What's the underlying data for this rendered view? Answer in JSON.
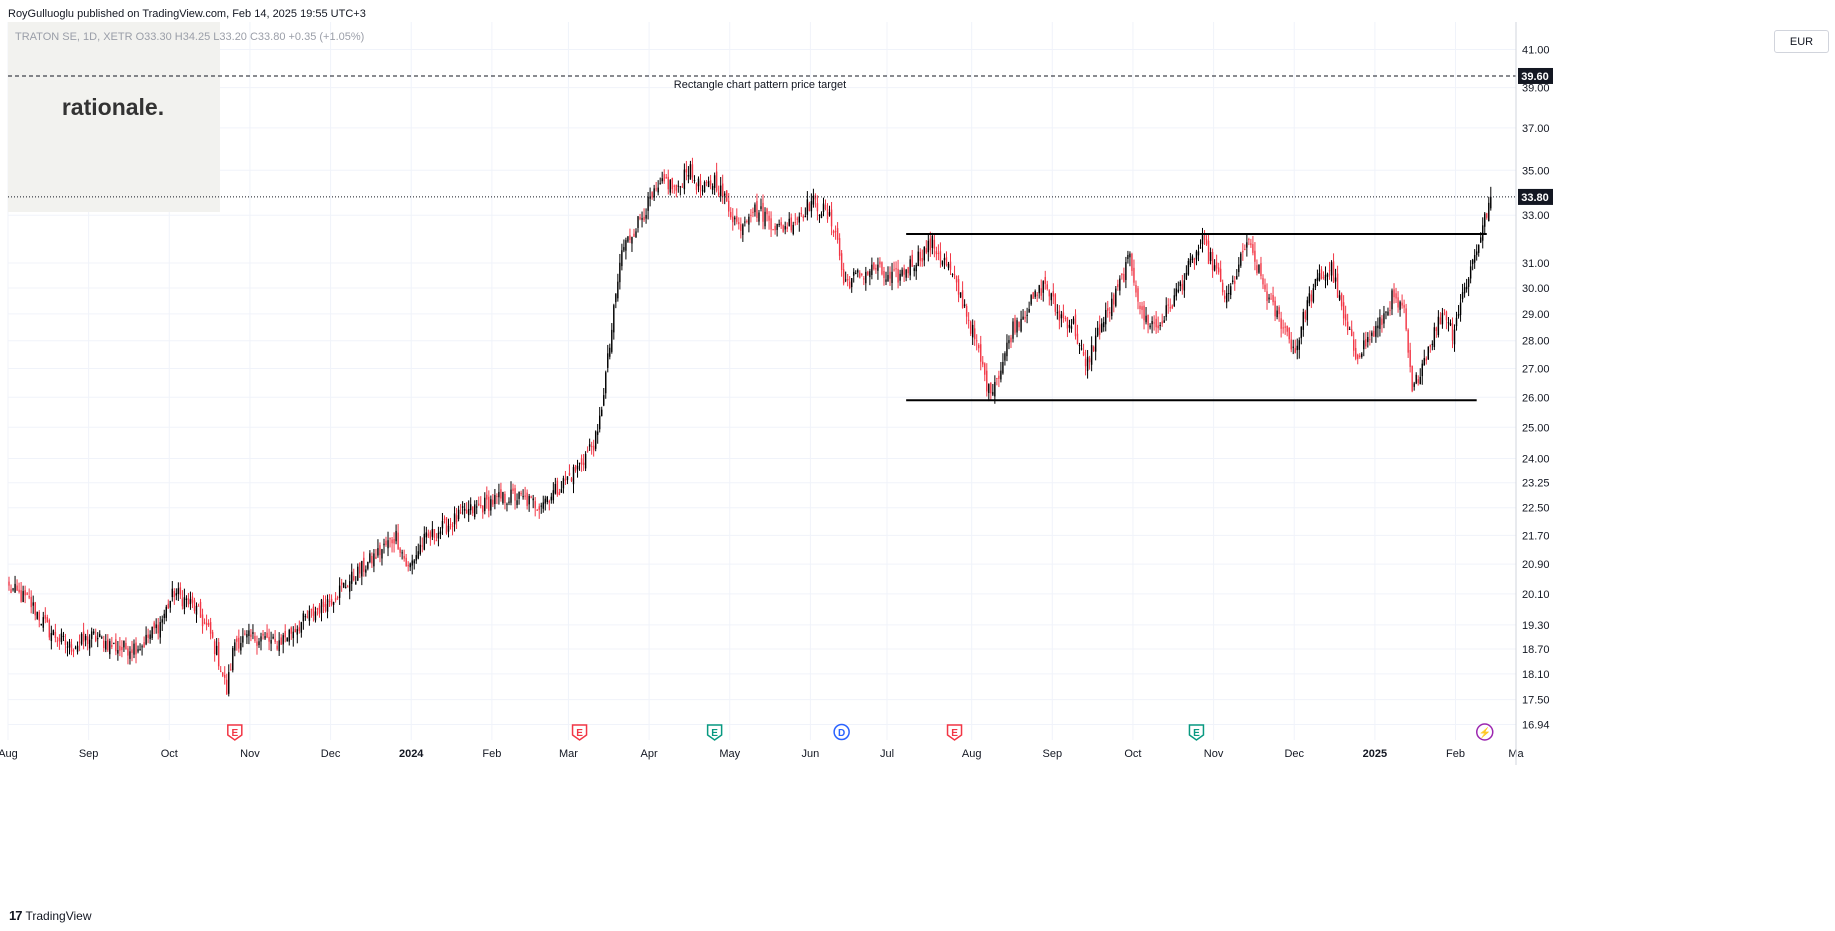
{
  "header": {
    "published": "RoyGulluoglu published on TradingView.com, Feb 14, 2025 19:55 UTC+3",
    "legend": "TRATON SE, 1D, XETR  O33.30  H34.25  L33.20  C33.80  +0.35 (+1.05%)"
  },
  "watermark": {
    "brand": "rationale."
  },
  "footer": {
    "brand": "TradingView",
    "logo_text": "17"
  },
  "colors": {
    "up": "#000000",
    "down": "#f23645",
    "grid": "#f0f3fa",
    "text": "#131722"
  },
  "chart_data": {
    "type": "candlestick",
    "symbol": "TRATON SE",
    "interval": "1D",
    "exchange": "XETR",
    "currency": "EUR",
    "y_scale": "log",
    "ylim": [
      16.6,
      42.5
    ],
    "y_ticks": [
      "41.00",
      "39.00",
      "37.00",
      "35.00",
      "33.00",
      "31.00",
      "30.00",
      "29.00",
      "28.00",
      "27.00",
      "26.00",
      "25.00",
      "24.00",
      "23.25",
      "22.50",
      "21.70",
      "20.90",
      "20.10",
      "19.30",
      "18.70",
      "18.10",
      "17.50",
      "16.94"
    ],
    "x_ticks": [
      "Aug",
      "Sep",
      "Oct",
      "Nov",
      "Dec",
      "2024",
      "Feb",
      "Mar",
      "Apr",
      "May",
      "Jun",
      "Jul",
      "Aug",
      "Sep",
      "Oct",
      "Nov",
      "Dec",
      "2025",
      "Feb",
      "Ma"
    ],
    "last_price": "33.80",
    "target_price": "39.60",
    "annotations": [
      {
        "text": "Rectangle chart pattern price target",
        "price": 39.6
      }
    ],
    "rectangle_pattern": {
      "upper": 32.2,
      "lower": 25.9
    },
    "events": [
      "E",
      "E",
      "E",
      "D",
      "E",
      "E",
      "⚡"
    ],
    "price_path": [
      [
        0,
        20.25
      ],
      [
        10,
        19.9
      ],
      [
        20,
        19.15
      ],
      [
        30,
        18.75
      ],
      [
        42,
        19.0
      ],
      [
        55,
        18.7
      ],
      [
        66,
        18.8
      ],
      [
        75,
        19.35
      ],
      [
        82,
        20.15
      ],
      [
        92,
        19.75
      ],
      [
        100,
        19.05
      ],
      [
        104,
        18.45
      ],
      [
        108,
        17.7
      ],
      [
        112,
        18.9
      ],
      [
        125,
        19.0
      ],
      [
        132,
        18.8
      ],
      [
        145,
        19.35
      ],
      [
        160,
        20.0
      ],
      [
        172,
        20.6
      ],
      [
        185,
        21.3
      ],
      [
        192,
        21.7
      ],
      [
        198,
        20.75
      ],
      [
        205,
        21.5
      ],
      [
        215,
        21.9
      ],
      [
        225,
        22.3
      ],
      [
        240,
        22.7
      ],
      [
        250,
        22.85
      ],
      [
        262,
        22.6
      ],
      [
        272,
        23.05
      ],
      [
        282,
        23.7
      ],
      [
        292,
        24.7
      ],
      [
        298,
        27.8
      ],
      [
        304,
        31.5
      ],
      [
        310,
        32.4
      ],
      [
        318,
        33.6
      ],
      [
        326,
        34.5
      ],
      [
        332,
        34.0
      ],
      [
        336,
        35.2
      ],
      [
        344,
        34.0
      ],
      [
        350,
        34.6
      ],
      [
        356,
        33.5
      ],
      [
        362,
        32.5
      ],
      [
        368,
        33.3
      ],
      [
        375,
        33.0
      ],
      [
        382,
        32.4
      ],
      [
        390,
        32.8
      ],
      [
        398,
        33.6
      ],
      [
        404,
        33.2
      ],
      [
        410,
        32.4
      ],
      [
        414,
        30.2
      ],
      [
        422,
        30.5
      ],
      [
        430,
        30.8
      ],
      [
        436,
        30.3
      ],
      [
        442,
        30.5
      ],
      [
        448,
        31.0
      ],
      [
        458,
        31.8
      ],
      [
        466,
        30.8
      ],
      [
        474,
        29.3
      ],
      [
        480,
        27.8
      ],
      [
        486,
        26.2
      ],
      [
        492,
        27.0
      ],
      [
        498,
        28.5
      ],
      [
        506,
        29.3
      ],
      [
        514,
        30.2
      ],
      [
        520,
        29.0
      ],
      [
        528,
        28.6
      ],
      [
        534,
        27.0
      ],
      [
        540,
        28.3
      ],
      [
        548,
        29.5
      ],
      [
        556,
        31.2
      ],
      [
        562,
        28.9
      ],
      [
        570,
        28.5
      ],
      [
        578,
        29.6
      ],
      [
        584,
        30.6
      ],
      [
        592,
        31.8
      ],
      [
        598,
        30.8
      ],
      [
        604,
        29.5
      ],
      [
        610,
        30.8
      ],
      [
        614,
        31.9
      ],
      [
        620,
        30.6
      ],
      [
        626,
        29.3
      ],
      [
        632,
        28.6
      ],
      [
        638,
        27.6
      ],
      [
        644,
        29.4
      ],
      [
        650,
        30.4
      ],
      [
        656,
        30.8
      ],
      [
        662,
        28.8
      ],
      [
        668,
        27.5
      ],
      [
        674,
        28.0
      ],
      [
        680,
        28.6
      ],
      [
        686,
        29.6
      ],
      [
        692,
        29.0
      ],
      [
        696,
        26.1
      ],
      [
        700,
        27.0
      ],
      [
        708,
        28.5
      ],
      [
        712,
        29.2
      ],
      [
        716,
        28.3
      ],
      [
        722,
        30.0
      ],
      [
        728,
        31.6
      ],
      [
        732,
        32.8
      ],
      [
        735,
        33.8
      ]
    ]
  }
}
